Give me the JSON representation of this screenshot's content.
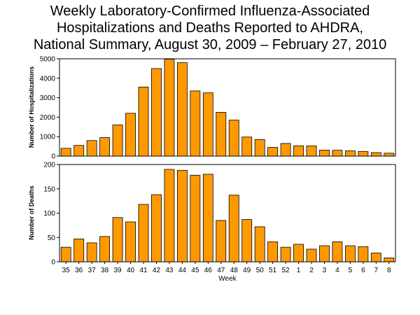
{
  "title": {
    "line1": "Weekly Laboratory-Confirmed Influenza-Associated",
    "line2": "Hospitalizations and Deaths Reported to AHDRA,",
    "line3": "National Summary, August 30, 2009 – February 27, 2010"
  },
  "colors": {
    "bar": "#FF9900",
    "outline": "#000000"
  },
  "chart_data": [
    {
      "type": "bar",
      "id": "hospitalizations",
      "categories": [
        "35",
        "36",
        "37",
        "38",
        "39",
        "40",
        "41",
        "42",
        "43",
        "44",
        "45",
        "46",
        "47",
        "48",
        "49",
        "50",
        "51",
        "52",
        "1",
        "2",
        "3",
        "4",
        "5",
        "6",
        "7",
        "8"
      ],
      "values": [
        400,
        550,
        800,
        950,
        1600,
        2200,
        3550,
        4500,
        4980,
        4800,
        3350,
        3250,
        2250,
        1850,
        980,
        850,
        450,
        650,
        530,
        520,
        310,
        300,
        270,
        240,
        180,
        150
      ],
      "ylabel": "Number of Hospitalizations",
      "xlabel": "",
      "ylim": [
        0,
        5000
      ],
      "yticks": [
        0,
        1000,
        2000,
        3000,
        4000,
        5000
      ],
      "grid": false
    },
    {
      "type": "bar",
      "id": "deaths",
      "categories": [
        "35",
        "36",
        "37",
        "38",
        "39",
        "40",
        "41",
        "42",
        "43",
        "44",
        "45",
        "46",
        "47",
        "48",
        "49",
        "50",
        "51",
        "52",
        "1",
        "2",
        "3",
        "4",
        "5",
        "6",
        "7",
        "8"
      ],
      "values": [
        30,
        47,
        39,
        52,
        91,
        82,
        118,
        138,
        190,
        188,
        178,
        180,
        85,
        137,
        87,
        72,
        41,
        30,
        36,
        26,
        33,
        41,
        33,
        31,
        18,
        8
      ],
      "ylabel": "Number of Deaths",
      "xlabel": "Week",
      "ylim": [
        0,
        200
      ],
      "yticks": [
        0,
        50,
        100,
        150,
        200
      ],
      "grid": false
    }
  ]
}
